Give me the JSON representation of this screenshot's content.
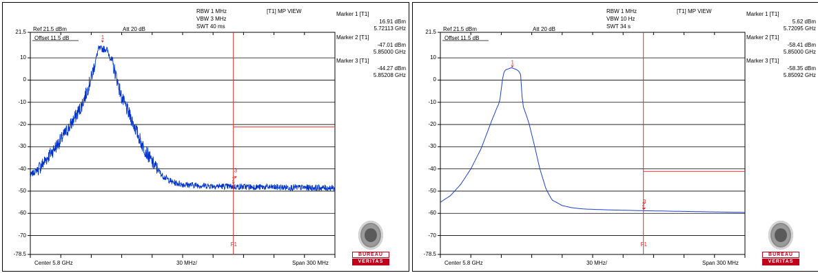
{
  "chart_data": [
    {
      "type": "line",
      "header": {
        "rbw": "RBW 1 MHz",
        "vbw": "VBW 3 MHz",
        "swt": "SWT 40 ms",
        "trace_label": "[T1] MP VIEW"
      },
      "ref_level": "Ref 21.5 dBm",
      "attenuation": "Att  20 dB",
      "offset": "Offset 11.5 dB",
      "y_tick_labels": [
        "21.5",
        "10",
        "0",
        "-10",
        "-20",
        "-30",
        "-40",
        "-50",
        "-60",
        "-70",
        "-78.5"
      ],
      "ylim": [
        -78.5,
        21.5
      ],
      "x_span_mhz": [
        -150,
        150
      ],
      "x_center_label": "Center 5.8 GHz",
      "x_div_label": "30 MHz/",
      "x_span_label": "Span 300 MHz",
      "markers": [
        {
          "title": "Marker 1 [T1]",
          "level": "16.91 dBm",
          "freq": "5.72113 GHz",
          "x_mhz": -78.9,
          "y": 16.91
        },
        {
          "title": "Marker 2 [T1]",
          "level": "-47.01 dBm",
          "freq": "5.85000 GHz",
          "x_mhz": 50,
          "y": -47.01
        },
        {
          "title": "Marker 3 [T1]",
          "level": "-44.27 dBm",
          "freq": "5.85208 GHz",
          "x_mhz": 52.1,
          "y": -44.27
        }
      ],
      "limit_line_dbm": -21.1,
      "f1_line_mhz": 50,
      "f1_label": "F1",
      "trace": {
        "style": "noisy",
        "color": "#0033cc",
        "x": [
          -150,
          -140,
          -130,
          -120,
          -110,
          -100,
          -95,
          -90,
          -85,
          -83,
          -75,
          -70,
          -65,
          -60,
          -50,
          -40,
          -30,
          -20,
          -10,
          0,
          20,
          50,
          100,
          150
        ],
        "y": [
          -43,
          -39,
          -33,
          -27,
          -20,
          -12,
          -6,
          1,
          10,
          14,
          14,
          9,
          1,
          -8,
          -18,
          -29,
          -37,
          -43,
          -46,
          -47,
          -47.5,
          -48,
          -48.3,
          -48.6
        ]
      }
    },
    {
      "type": "line",
      "header": {
        "rbw": "RBW 1 MHz",
        "vbw": "VBW 10 Hz",
        "swt": "SWT 34 s",
        "trace_label": "[T1] MP VIEW"
      },
      "ref_level": "Ref 21.5 dBm",
      "attenuation": "Att  20 dB",
      "offset": "Offset 11.5 dB",
      "y_tick_labels": [
        "21.5",
        "10",
        "0",
        "-10",
        "-20",
        "-30",
        "-40",
        "-50",
        "-60",
        "-70",
        "-78.5"
      ],
      "ylim": [
        -78.5,
        21.5
      ],
      "x_span_mhz": [
        -150,
        150
      ],
      "x_center_label": "Center 5.8 GHz",
      "x_div_label": "30 MHz/",
      "x_span_label": "Span 300 MHz",
      "markers": [
        {
          "title": "Marker 1 [T1]",
          "level": "5.62 dBm",
          "freq": "5.72095 GHz",
          "x_mhz": -79.1,
          "y": 5.62
        },
        {
          "title": "Marker 2 [T1]",
          "level": "-58.41 dBm",
          "freq": "5.85000 GHz",
          "x_mhz": 50,
          "y": -58.41
        },
        {
          "title": "Marker 3 [T1]",
          "level": "-58.35 dBm",
          "freq": "5.85092 GHz",
          "x_mhz": 50.9,
          "y": -58.35
        }
      ],
      "limit_line_dbm": -41.1,
      "f1_line_mhz": 50,
      "f1_label": "F1",
      "trace": {
        "style": "smooth",
        "color": "#1a3fd1",
        "x": [
          -150,
          -140,
          -130,
          -120,
          -110,
          -100,
          -93,
          -92,
          -88,
          -86,
          -80,
          -74,
          -71,
          -69,
          -63,
          -57,
          -52,
          -46,
          -40,
          -30,
          -20,
          -10,
          0,
          20,
          50,
          100,
          150
        ],
        "y": [
          -55,
          -52,
          -47,
          -40,
          -31,
          -19,
          -11,
          -11,
          3,
          4.5,
          5.6,
          4.5,
          3,
          -11,
          -19,
          -30,
          -40,
          -49,
          -54,
          -56.5,
          -57.5,
          -58,
          -58.2,
          -58.5,
          -58.8,
          -59.2,
          -59.6
        ]
      }
    }
  ],
  "logo": {
    "line1": "BUREAU",
    "line2": "VERITAS"
  }
}
